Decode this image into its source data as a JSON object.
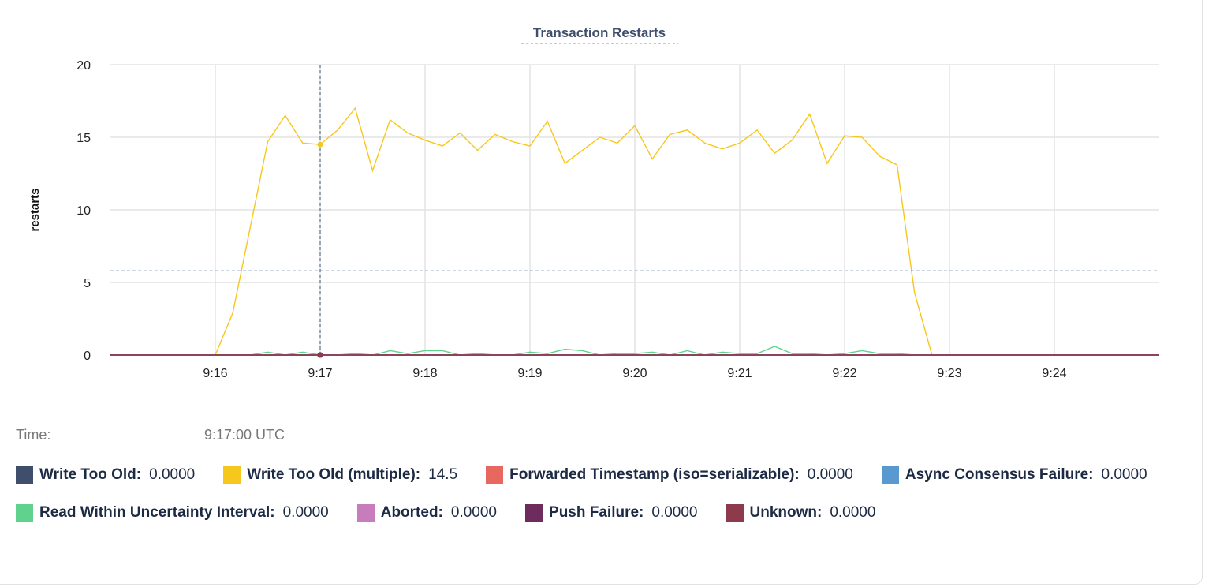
{
  "chart_data": {
    "type": "line",
    "title": "Transaction Restarts",
    "y_label": "restarts",
    "x": [
      900,
      910,
      920,
      930,
      940,
      950,
      960,
      970,
      980,
      990,
      1000,
      1010,
      1020,
      1030,
      1040,
      1050,
      1060,
      1070,
      1080,
      1090,
      1100,
      1110,
      1120,
      1130,
      1140,
      1150,
      1160,
      1170,
      1180,
      1190,
      1200,
      1210,
      1220,
      1230,
      1240,
      1250,
      1260,
      1270,
      1280,
      1290,
      1300,
      1310,
      1320,
      1330,
      1340,
      1350,
      1360,
      1370,
      1380,
      1390,
      1400,
      1410,
      1420,
      1430,
      1440,
      1450,
      1460,
      1470,
      1480,
      1490,
      1500
    ],
    "xlim": [
      900,
      1500
    ],
    "xticks": [
      {
        "value": 960,
        "label": "9:16"
      },
      {
        "value": 1020,
        "label": "9:17"
      },
      {
        "value": 1080,
        "label": "9:18"
      },
      {
        "value": 1140,
        "label": "9:19"
      },
      {
        "value": 1200,
        "label": "9:20"
      },
      {
        "value": 1260,
        "label": "9:21"
      },
      {
        "value": 1320,
        "label": "9:22"
      },
      {
        "value": 1380,
        "label": "9:23"
      },
      {
        "value": 1440,
        "label": "9:24"
      }
    ],
    "ylim": [
      0,
      20
    ],
    "yticks": [
      0,
      5,
      10,
      15,
      20
    ],
    "grid": true,
    "series": [
      {
        "name": "Write Too Old:",
        "color": "#3e4e6b",
        "values": [
          0,
          0,
          0,
          0,
          0,
          0,
          0,
          0,
          0,
          0,
          0,
          0,
          0,
          0,
          0,
          0,
          0,
          0,
          0,
          0,
          0,
          0,
          0,
          0,
          0,
          0,
          0,
          0,
          0,
          0,
          0,
          0,
          0,
          0,
          0,
          0,
          0,
          0,
          0,
          0,
          0,
          0,
          0,
          0,
          0,
          0,
          0,
          0,
          0,
          0,
          0,
          0,
          0,
          0,
          0,
          0,
          0,
          0,
          0,
          0,
          0
        ]
      },
      {
        "name": "Write Too Old (multiple):",
        "color": "#f6c71d",
        "values": [
          0,
          0,
          0,
          0,
          0,
          0,
          0,
          2.9,
          8.8,
          14.7,
          16.5,
          14.6,
          14.5,
          15.5,
          17.0,
          12.7,
          16.2,
          15.3,
          14.8,
          14.4,
          15.3,
          14.1,
          15.2,
          14.7,
          14.4,
          16.1,
          13.2,
          14.1,
          15.0,
          14.6,
          15.8,
          13.5,
          15.2,
          15.5,
          14.6,
          14.2,
          14.6,
          15.5,
          13.9,
          14.8,
          16.6,
          13.2,
          15.1,
          15.0,
          13.7,
          13.1,
          4.3,
          0,
          0,
          0,
          0,
          0,
          0,
          0,
          0,
          0,
          0,
          0,
          0,
          0,
          0
        ]
      },
      {
        "name": "Forwarded Timestamp (iso=serializable):",
        "color": "#e8685f",
        "values": [
          0,
          0,
          0,
          0,
          0,
          0,
          0,
          0,
          0,
          0,
          0,
          0,
          0,
          0,
          0,
          0,
          0,
          0,
          0,
          0,
          0,
          0,
          0,
          0,
          0,
          0,
          0,
          0,
          0,
          0,
          0,
          0,
          0,
          0,
          0,
          0,
          0,
          0,
          0,
          0,
          0,
          0,
          0,
          0,
          0,
          0,
          0,
          0,
          0,
          0,
          0,
          0,
          0,
          0,
          0,
          0,
          0,
          0,
          0,
          0,
          0
        ]
      },
      {
        "name": "Async Consensus Failure:",
        "color": "#5a98d0",
        "values": [
          0,
          0,
          0,
          0,
          0,
          0,
          0,
          0,
          0,
          0,
          0,
          0,
          0,
          0,
          0,
          0,
          0,
          0,
          0,
          0,
          0,
          0,
          0,
          0,
          0,
          0,
          0,
          0,
          0,
          0,
          0,
          0,
          0,
          0,
          0,
          0,
          0,
          0,
          0,
          0,
          0,
          0,
          0,
          0,
          0,
          0,
          0,
          0,
          0,
          0,
          0,
          0,
          0,
          0,
          0,
          0,
          0,
          0,
          0,
          0,
          0
        ]
      },
      {
        "name": "Read Within Uncertainty Interval:",
        "color": "#5fd38d",
        "values": [
          0,
          0,
          0,
          0,
          0,
          0,
          0,
          0,
          0,
          0.2,
          0,
          0.2,
          0,
          0,
          0.1,
          0,
          0.3,
          0.1,
          0.3,
          0.3,
          0,
          0.1,
          0,
          0,
          0.2,
          0.1,
          0.4,
          0.3,
          0,
          0.1,
          0.1,
          0.2,
          0,
          0.3,
          0,
          0.2,
          0.1,
          0.1,
          0.6,
          0.1,
          0.1,
          0,
          0.1,
          0.3,
          0.1,
          0.1,
          0,
          0,
          0,
          0,
          0,
          0,
          0,
          0,
          0,
          0,
          0,
          0,
          0,
          0,
          0
        ]
      },
      {
        "name": "Aborted:",
        "color": "#c77dbb",
        "values": [
          0,
          0,
          0,
          0,
          0,
          0,
          0,
          0,
          0,
          0,
          0,
          0,
          0,
          0,
          0,
          0,
          0,
          0,
          0,
          0,
          0,
          0,
          0,
          0,
          0,
          0,
          0,
          0,
          0,
          0,
          0,
          0,
          0,
          0,
          0,
          0,
          0,
          0,
          0,
          0,
          0,
          0,
          0,
          0,
          0,
          0,
          0,
          0,
          0,
          0,
          0,
          0,
          0,
          0,
          0,
          0,
          0,
          0,
          0,
          0,
          0
        ]
      },
      {
        "name": "Push Failure:",
        "color": "#6e2b5e",
        "values": [
          0,
          0,
          0,
          0,
          0,
          0,
          0,
          0,
          0,
          0,
          0,
          0,
          0,
          0,
          0,
          0,
          0,
          0,
          0,
          0,
          0,
          0,
          0,
          0,
          0,
          0,
          0,
          0,
          0,
          0,
          0,
          0,
          0,
          0,
          0,
          0,
          0,
          0,
          0,
          0,
          0,
          0,
          0,
          0,
          0,
          0,
          0,
          0,
          0,
          0,
          0,
          0,
          0,
          0,
          0,
          0,
          0,
          0,
          0,
          0,
          0
        ]
      },
      {
        "name": "Unknown:",
        "color": "#8d3a4d",
        "values": [
          0,
          0,
          0,
          0,
          0,
          0,
          0,
          0,
          0,
          0,
          0,
          0,
          0,
          0,
          0,
          0,
          0,
          0,
          0,
          0,
          0,
          0,
          0,
          0,
          0,
          0,
          0,
          0,
          0,
          0,
          0,
          0,
          0,
          0,
          0,
          0,
          0,
          0,
          0,
          0,
          0,
          0,
          0,
          0,
          0,
          0,
          0,
          0,
          0,
          0,
          0,
          0,
          0,
          0,
          0,
          0,
          0,
          0,
          0,
          0,
          0
        ]
      }
    ],
    "hover": {
      "index": 12,
      "crosshair_y": 5.8,
      "time_label": "Time:",
      "time": "9:17:00 UTC",
      "values": [
        "0.0000",
        "14.5",
        "0.0000",
        "0.0000",
        "0.0000",
        "0.0000",
        "0.0000",
        "0.0000"
      ]
    }
  }
}
